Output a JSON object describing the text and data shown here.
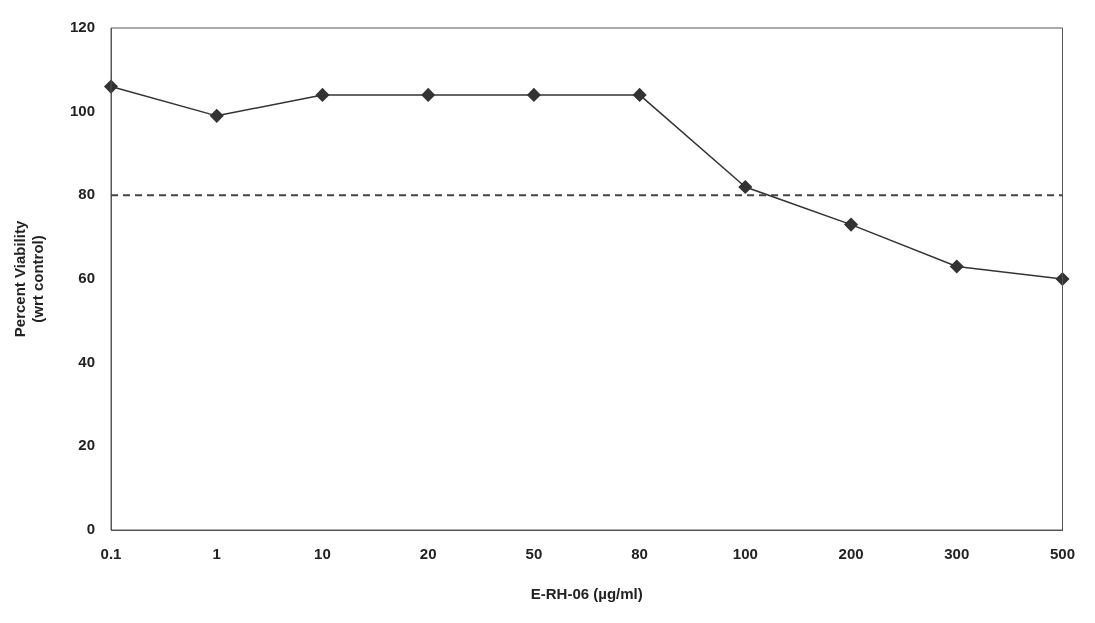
{
  "chart_data": {
    "type": "line",
    "xlabel": "E-RH-06 (µg/ml)",
    "ylabel": "Percent Viability\n(wrt control)",
    "categories": [
      "0.1",
      "1",
      "10",
      "20",
      "50",
      "80",
      "100",
      "200",
      "300",
      "500"
    ],
    "series": [
      {
        "color": "#333333",
        "values": [
          106,
          99,
          104,
          104,
          104,
          104,
          82,
          73,
          63,
          60
        ]
      }
    ],
    "ylim": [
      0,
      120
    ],
    "yticks": [
      0,
      20,
      40,
      60,
      80,
      100,
      120
    ],
    "grid": false,
    "legend": false,
    "marker": "diamond",
    "line_style": "solid",
    "ref_lines": [
      {
        "axis": "y",
        "value": 80,
        "color": "#444444",
        "line_style": "dashed"
      }
    ]
  }
}
